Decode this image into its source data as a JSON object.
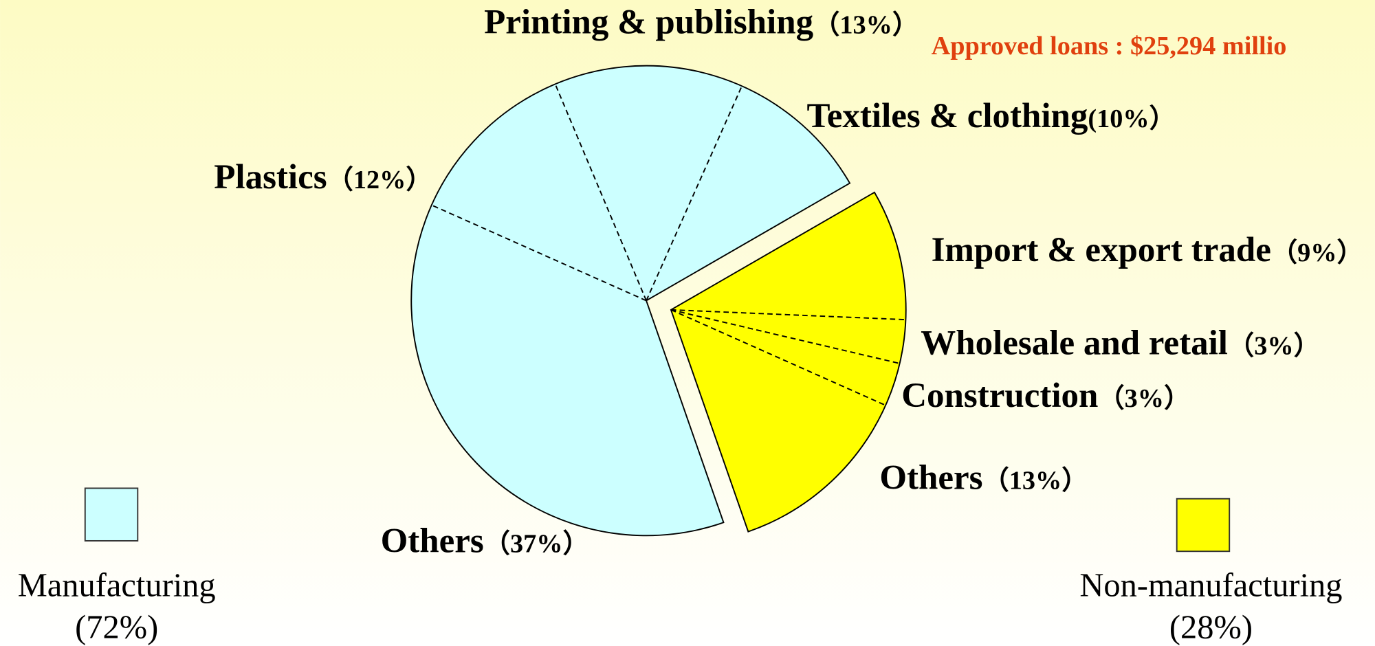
{
  "chart_data": {
    "type": "pie",
    "subtitle": "Approved loans : $25,294 millio",
    "groups": [
      {
        "name": "Manufacturing",
        "value": 72,
        "value_label": "(72%)",
        "color": "#ccffff",
        "categories": [
          "Others",
          "Plastics",
          "Printing & publishing",
          "Textiles & clothing"
        ],
        "values": [
          37,
          12,
          13,
          10
        ],
        "value_labels": [
          "（37%）",
          "（12%）",
          "（13%）",
          "(10%）"
        ]
      },
      {
        "name": "Non-manufacturing",
        "value": 28,
        "value_label": "(28%)",
        "color": "#ffff00",
        "categories": [
          "Import & export trade",
          "Wholesale and retail",
          "Construction",
          "Others"
        ],
        "values": [
          9,
          3,
          3,
          13
        ],
        "value_labels": [
          "（9%）",
          "（3%）",
          "（3%）",
          "（13%）"
        ]
      }
    ]
  }
}
